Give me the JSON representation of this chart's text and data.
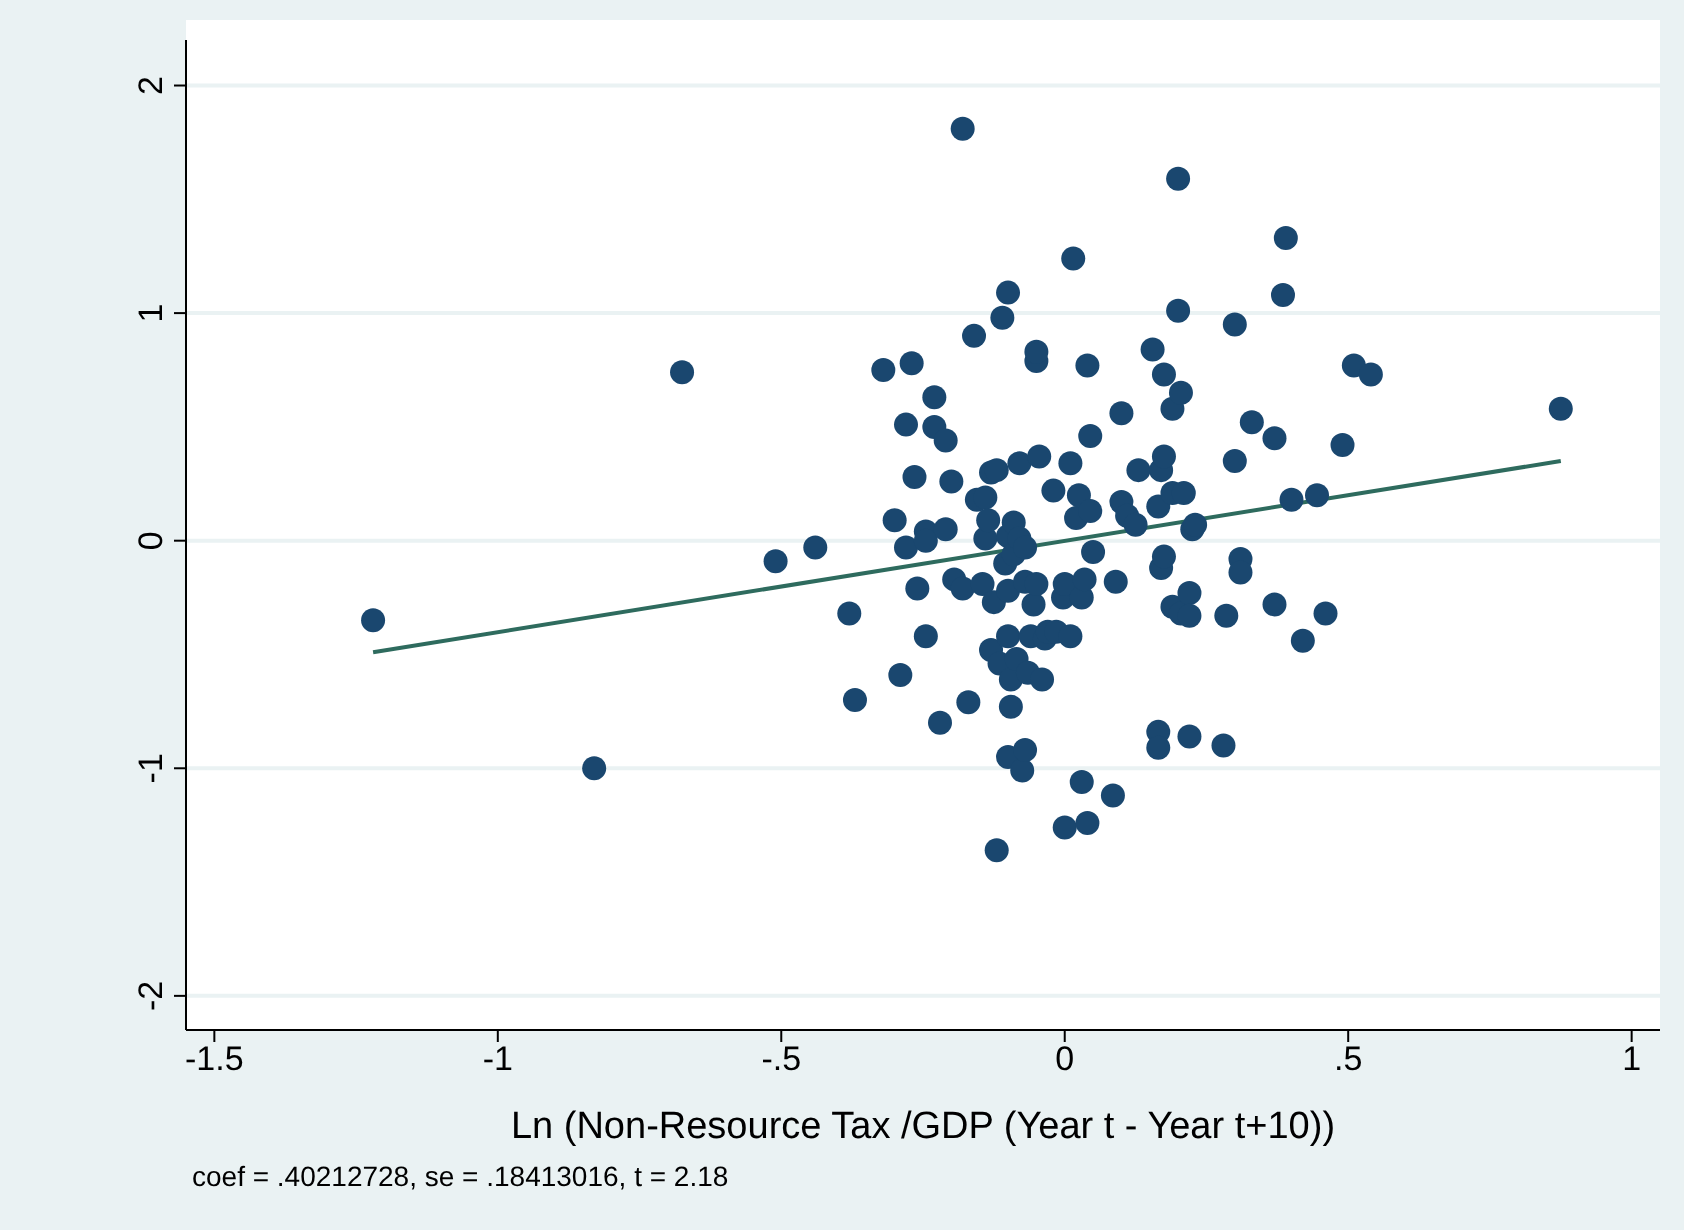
{
  "chart_data": {
    "type": "scatter",
    "xlabel": "Ln (Non-Resource Tax /GDP (Year t - Year t+10))",
    "annotations": [
      "coef = .40212728, se = .18413016, t = 2.18"
    ],
    "xlim": [
      -1.55,
      1.05
    ],
    "ylim": [
      -2.15,
      2.2
    ],
    "xticks": [
      {
        "value": -1.5,
        "label": "-1.5"
      },
      {
        "value": -1,
        "label": "-1"
      },
      {
        "value": -0.5,
        "label": "-.5"
      },
      {
        "value": 0,
        "label": "0"
      },
      {
        "value": 0.5,
        "label": ".5"
      },
      {
        "value": 1,
        "label": "1"
      }
    ],
    "yticks": [
      -2,
      -1,
      0,
      1,
      2
    ],
    "grid": "y",
    "legend": false,
    "marker": "circle",
    "series": [
      {
        "color": "#1a476f",
        "x": [
          -1.22,
          -0.83,
          -0.675,
          -0.51,
          -0.44,
          -0.38,
          -0.37,
          -0.32,
          -0.3,
          -0.29,
          -0.28,
          -0.28,
          -0.27,
          -0.265,
          -0.26,
          -0.245,
          -0.245,
          -0.245,
          -0.23,
          -0.23,
          -0.22,
          -0.21,
          -0.21,
          -0.2,
          -0.195,
          -0.18,
          -0.18,
          -0.17,
          -0.16,
          -0.155,
          -0.14,
          -0.145,
          -0.14,
          -0.135,
          -0.13,
          -0.13,
          -0.12,
          -0.12,
          -0.125,
          -0.115,
          -0.11,
          -0.105,
          -0.1,
          -0.1,
          -0.1,
          -0.1,
          -0.1,
          -0.095,
          -0.095,
          -0.09,
          -0.09,
          -0.085,
          -0.08,
          -0.08,
          -0.075,
          -0.07,
          -0.07,
          -0.07,
          -0.065,
          -0.06,
          -0.055,
          -0.05,
          -0.05,
          -0.05,
          -0.045,
          -0.04,
          -0.035,
          -0.03,
          -0.02,
          -0.015,
          -0.003,
          0,
          0,
          0.01,
          0.01,
          0.015,
          0.02,
          0.025,
          0.03,
          0.03,
          0.035,
          0.04,
          0.04,
          0.045,
          0.045,
          0.05,
          0.085,
          0.09,
          0.1,
          0.1,
          0.11,
          0.125,
          0.13,
          0.155,
          0.165,
          0.165,
          0.165,
          0.17,
          0.17,
          0.175,
          0.175,
          0.175,
          0.19,
          0.19,
          0.19,
          0.2,
          0.2,
          0.205,
          0.205,
          0.21,
          0.22,
          0.22,
          0.22,
          0.225,
          0.23,
          0.28,
          0.285,
          0.3,
          0.3,
          0.31,
          0.31,
          0.33,
          0.37,
          0.37,
          0.385,
          0.39,
          0.4,
          0.42,
          0.445,
          0.46,
          0.49,
          0.51,
          0.54,
          0.875
        ],
        "values": [
          -0.35,
          -1.0,
          0.74,
          -0.09,
          -0.03,
          -0.32,
          -0.7,
          0.75,
          0.09,
          -0.59,
          -0.03,
          0.51,
          0.78,
          0.28,
          -0.21,
          -0.42,
          0.04,
          0.0,
          0.63,
          0.5,
          -0.8,
          0.44,
          0.05,
          0.26,
          -0.17,
          -0.21,
          1.81,
          -0.71,
          0.9,
          0.18,
          0.19,
          -0.19,
          0.01,
          0.09,
          -0.48,
          0.3,
          0.31,
          -1.36,
          -0.27,
          -0.54,
          0.98,
          -0.1,
          0.02,
          -0.42,
          1.09,
          -0.95,
          -0.22,
          -0.61,
          -0.73,
          0.08,
          -0.06,
          -0.52,
          0.01,
          0.34,
          -1.01,
          -0.92,
          -0.18,
          -0.03,
          -0.58,
          -0.42,
          -0.28,
          0.79,
          0.83,
          -0.19,
          0.37,
          -0.61,
          -0.43,
          -0.4,
          0.22,
          -0.4,
          -0.25,
          -0.19,
          -1.26,
          -0.42,
          0.34,
          1.24,
          0.1,
          0.2,
          -0.25,
          -1.06,
          -0.17,
          -1.24,
          0.77,
          0.46,
          0.13,
          -0.05,
          -1.12,
          -0.18,
          0.56,
          0.17,
          0.11,
          0.07,
          0.31,
          0.84,
          -0.84,
          -0.91,
          0.15,
          0.31,
          -0.12,
          -0.07,
          0.37,
          0.73,
          0.58,
          0.21,
          -0.29,
          1.59,
          1.01,
          0.65,
          -0.32,
          0.21,
          -0.23,
          -0.33,
          -0.86,
          0.05,
          0.07,
          -0.9,
          -0.33,
          0.95,
          0.35,
          -0.08,
          -0.14,
          0.52,
          0.45,
          -0.28,
          1.08,
          1.33,
          0.18,
          -0.44,
          0.2,
          -0.32,
          0.42,
          0.77,
          0.73,
          0.58
        ]
      },
      {
        "type": "line",
        "color": "#2e6b5e",
        "marker": "none",
        "x": [
          -1.22,
          0.875
        ],
        "values": [
          -0.49,
          0.35
        ]
      }
    ]
  }
}
